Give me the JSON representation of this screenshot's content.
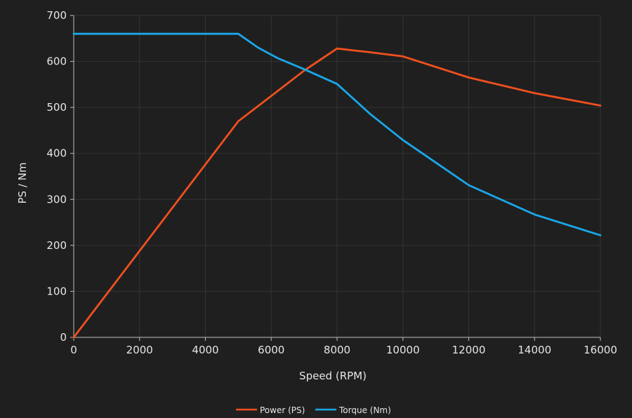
{
  "chart_data": {
    "type": "line",
    "title": "",
    "xlabel": "Speed (RPM)",
    "ylabel": "PS / Nm",
    "xlim": [
      0,
      16000
    ],
    "ylim": [
      0,
      700
    ],
    "xticks": [
      "0",
      "2000",
      "4000",
      "6000",
      "8000",
      "10000",
      "12000",
      "14000",
      "16000"
    ],
    "yticks": [
      "0",
      "100",
      "200",
      "300",
      "400",
      "500",
      "600",
      "700"
    ],
    "grid": true,
    "legend_position": "bottom-center",
    "series": [
      {
        "name": "Power (PS)",
        "color": "#f0501e",
        "points": [
          [
            0,
            0
          ],
          [
            5000,
            470
          ],
          [
            6000,
            525
          ],
          [
            7000,
            580
          ],
          [
            8000,
            628
          ],
          [
            9000,
            620
          ],
          [
            10000,
            611
          ],
          [
            12000,
            565
          ],
          [
            14000,
            531
          ],
          [
            16000,
            504
          ]
        ]
      },
      {
        "name": "Torque (Nm)",
        "color": "#1aa7e8",
        "points": [
          [
            0,
            660
          ],
          [
            5000,
            660
          ],
          [
            5600,
            630
          ],
          [
            6200,
            607
          ],
          [
            7000,
            583
          ],
          [
            8000,
            551
          ],
          [
            9000,
            486
          ],
          [
            10000,
            429
          ],
          [
            12000,
            331
          ],
          [
            14000,
            267
          ],
          [
            16000,
            222
          ]
        ]
      }
    ]
  }
}
